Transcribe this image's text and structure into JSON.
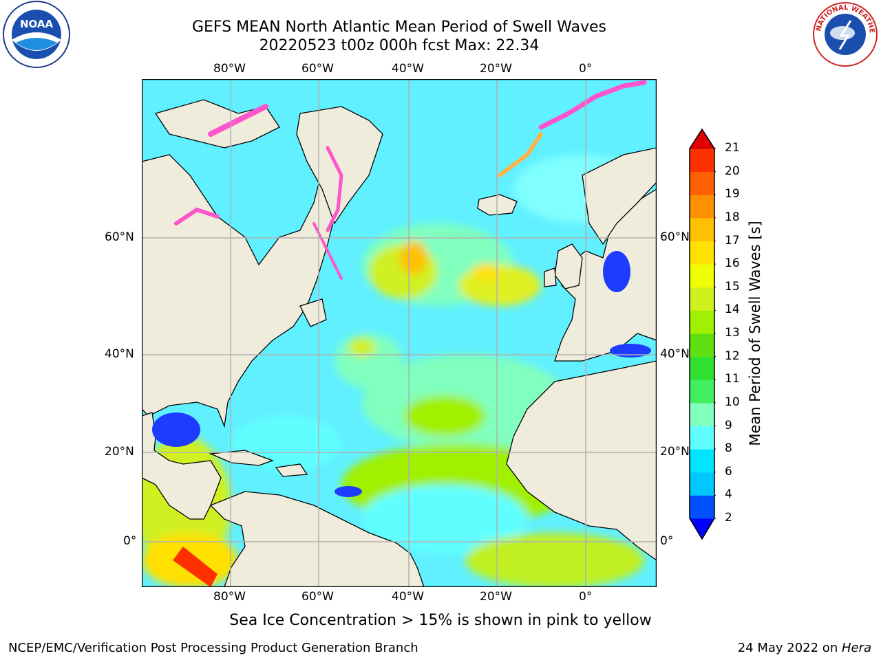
{
  "title": {
    "line1": "GEFS MEAN North Atlantic Mean Period of Swell Waves",
    "line2": "20220523 t00z 000h fcst   Max: 22.34"
  },
  "logos": {
    "left": "NOAA",
    "right": "NATIONAL WEATHER SERVICE"
  },
  "map": {
    "projection": "Plate Carree (cylindrical)",
    "lon_ticks": [
      "80°W",
      "60°W",
      "40°W",
      "20°W",
      "0°"
    ],
    "lat_ticks": [
      "60°N",
      "40°N",
      "20°N",
      "0°"
    ],
    "land_color": "#efecdc",
    "ocean_field": "Mean Period of Swell Waves",
    "sea_ice_note_colors": [
      "#ff55cc",
      "#ffb347",
      "#ffff66"
    ]
  },
  "colorbar": {
    "label": "Mean Period of Swell Waves [s]",
    "ticks": [
      "2",
      "4",
      "6",
      "8",
      "9",
      "10",
      "11",
      "12",
      "13",
      "14",
      "15",
      "16",
      "17",
      "18",
      "19",
      "20",
      "21"
    ],
    "colors": [
      "#0050ff",
      "#00c8ff",
      "#00e4ff",
      "#60ffff",
      "#80ffbe",
      "#40ee60",
      "#30e030",
      "#60e010",
      "#a0f000",
      "#d0f020",
      "#f0ff00",
      "#ffe000",
      "#ffc000",
      "#ff9000",
      "#ff6000",
      "#ff3000"
    ],
    "under_color": "#0000ff",
    "over_color": "#e00000"
  },
  "note": "Sea Ice Concentration > 15% is shown in pink to yellow",
  "footer": {
    "left": "NCEP/EMC/Verification Post Processing Product Generation Branch",
    "right_date": "24 May 2022 on ",
    "right_host": "Hera"
  }
}
